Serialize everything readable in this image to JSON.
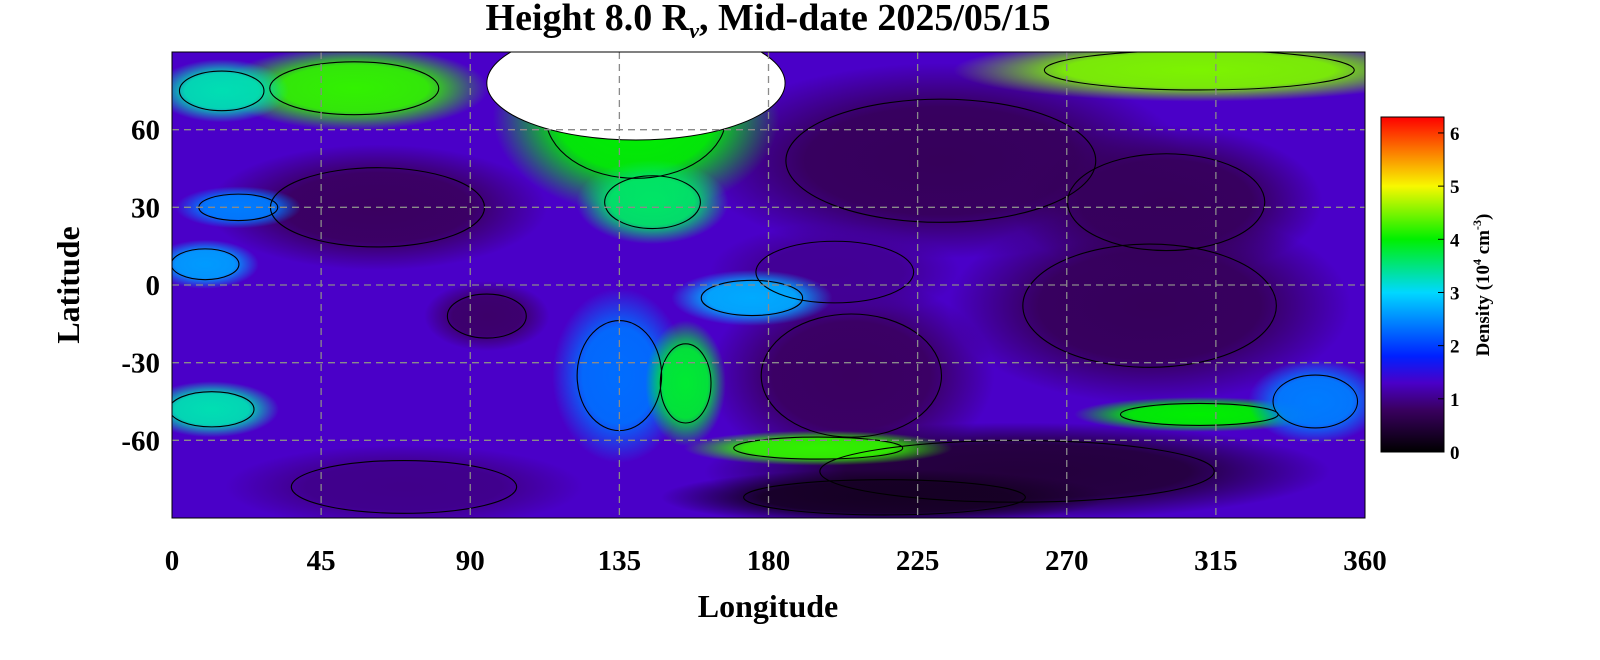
{
  "chart_data": {
    "type": "heatmap",
    "title": {
      "prefix": "Height 8.0 R",
      "subscript": "v",
      "suffix": ", Mid-date 2025/05/15"
    },
    "xlabel": "Longitude",
    "ylabel": "Latitude",
    "xlim": [
      0,
      360
    ],
    "ylim": [
      -90,
      90
    ],
    "x_ticks": [
      0,
      45,
      90,
      135,
      180,
      225,
      270,
      315,
      360
    ],
    "y_ticks": [
      60,
      30,
      0,
      -30,
      -60
    ],
    "x_tick_labels": [
      "0",
      "45",
      "90",
      "135",
      "180",
      "225",
      "270",
      "315",
      "360"
    ],
    "y_tick_labels": [
      "60",
      "30",
      "0",
      "-30",
      "-60"
    ],
    "grid": true,
    "colorbar": {
      "label_prefix": "Density (10",
      "label_exp1": "4",
      "label_mid": " cm",
      "label_exp2": "-3",
      "label_suffix": ")",
      "range": [
        0,
        6.3
      ],
      "ticks": [
        0,
        1,
        2,
        3,
        4,
        5,
        6
      ],
      "tick_labels": [
        "0",
        "1",
        "2",
        "3",
        "4",
        "5",
        "6"
      ],
      "placement": "right",
      "colors": [
        "#000000",
        "#3a0060",
        "#4a00c8",
        "#0020ff",
        "#00d8ff",
        "#00f000",
        "#f8f800",
        "#ff0000"
      ],
      "stops": [
        0,
        0.8,
        1.3,
        1.8,
        3.0,
        4.0,
        5.0,
        6.3
      ]
    },
    "background_density": 1.3,
    "missing_data_color": "#ffffff",
    "features": [
      {
        "lon": 62,
        "lat": 30,
        "rx": 38,
        "ry": 18,
        "density": 0.8
      },
      {
        "lon": 95,
        "lat": -12,
        "rx": 14,
        "ry": 10,
        "density": 0.85
      },
      {
        "lon": 232,
        "lat": 48,
        "rx": 55,
        "ry": 28,
        "density": 0.75
      },
      {
        "lon": 300,
        "lat": 32,
        "rx": 35,
        "ry": 22,
        "density": 0.75
      },
      {
        "lon": 295,
        "lat": -8,
        "rx": 45,
        "ry": 28,
        "density": 0.75
      },
      {
        "lon": 205,
        "lat": -35,
        "rx": 32,
        "ry": 28,
        "density": 0.8
      },
      {
        "lon": 255,
        "lat": -72,
        "rx": 70,
        "ry": 14,
        "density": 0.5
      },
      {
        "lon": 215,
        "lat": -82,
        "rx": 50,
        "ry": 8,
        "density": 0.3
      },
      {
        "lon": 70,
        "lat": -78,
        "rx": 40,
        "ry": 12,
        "density": 1.0
      },
      {
        "lon": 200,
        "lat": 5,
        "rx": 28,
        "ry": 14,
        "density": 1.05
      },
      {
        "lon": 140,
        "lat": 65,
        "rx": 32,
        "ry": 28,
        "density": 4.0
      },
      {
        "lon": 145,
        "lat": 32,
        "rx": 17,
        "ry": 12,
        "density": 3.6
      },
      {
        "lon": 55,
        "lat": 76,
        "rx": 30,
        "ry": 12,
        "density": 4.2
      },
      {
        "lon": 15,
        "lat": 75,
        "rx": 15,
        "ry": 9,
        "density": 3.3
      },
      {
        "lon": 310,
        "lat": 83,
        "rx": 55,
        "ry": 9,
        "density": 4.5
      },
      {
        "lon": 12,
        "lat": -48,
        "rx": 15,
        "ry": 8,
        "density": 3.3
      },
      {
        "lon": 135,
        "lat": -35,
        "rx": 15,
        "ry": 25,
        "density": 2.3
      },
      {
        "lon": 155,
        "lat": -38,
        "rx": 9,
        "ry": 18,
        "density": 3.8
      },
      {
        "lon": 175,
        "lat": -5,
        "rx": 18,
        "ry": 8,
        "density": 2.7
      },
      {
        "lon": 195,
        "lat": -63,
        "rx": 30,
        "ry": 5,
        "density": 4.2
      },
      {
        "lon": 310,
        "lat": -50,
        "rx": 28,
        "ry": 5,
        "density": 4.0
      },
      {
        "lon": 10,
        "lat": 8,
        "rx": 12,
        "ry": 7,
        "density": 2.6
      },
      {
        "lon": 20,
        "lat": 30,
        "rx": 14,
        "ry": 6,
        "density": 2.4
      },
      {
        "lon": 345,
        "lat": -45,
        "rx": 15,
        "ry": 12,
        "density": 2.4
      }
    ],
    "blank_region": {
      "lon": 140,
      "lat": 78,
      "rx": 45,
      "ry": 22
    }
  }
}
